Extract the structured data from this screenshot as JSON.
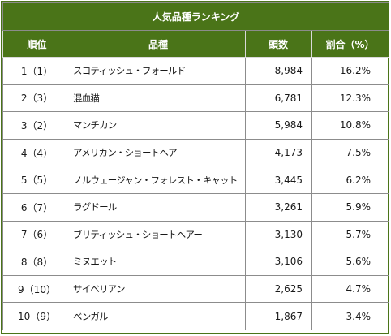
{
  "table": {
    "title": "人気品種ランキング",
    "headers": {
      "rank": "順位",
      "breed": "品種",
      "count": "頭数",
      "percent": "割合（%）"
    },
    "rows": [
      {
        "rank": "1（1）",
        "breed": "スコティッシュ・フォールド",
        "count": "8,984",
        "percent": "16.2%"
      },
      {
        "rank": "2（3）",
        "breed": "混血猫",
        "count": "6,781",
        "percent": "12.3%"
      },
      {
        "rank": "3（2）",
        "breed": "マンチカン",
        "count": "5,984",
        "percent": "10.8%"
      },
      {
        "rank": "4（4）",
        "breed": "アメリカン・ショートヘア",
        "count": "4,173",
        "percent": "7.5%"
      },
      {
        "rank": "5（5）",
        "breed": "ノルウェージャン・フォレスト・キャット",
        "count": "3,445",
        "percent": "6.2%"
      },
      {
        "rank": "6（7）",
        "breed": "ラグドール",
        "count": "3,261",
        "percent": "5.9%"
      },
      {
        "rank": "7（6）",
        "breed": "ブリティッシュ・ショートヘアー",
        "count": "3,130",
        "percent": "5.7%"
      },
      {
        "rank": "8（8）",
        "breed": "ミヌエット",
        "count": "3,106",
        "percent": "5.6%"
      },
      {
        "rank": "9（10）",
        "breed": "サイベリアン",
        "count": "2,625",
        "percent": "4.7%"
      },
      {
        "rank": "10（9）",
        "breed": "ベンガル",
        "count": "1,867",
        "percent": "3.4%"
      }
    ]
  },
  "colors": {
    "header_bg": "#4a7418",
    "header_text": "#ffffff",
    "border": "#8c8c8c"
  }
}
